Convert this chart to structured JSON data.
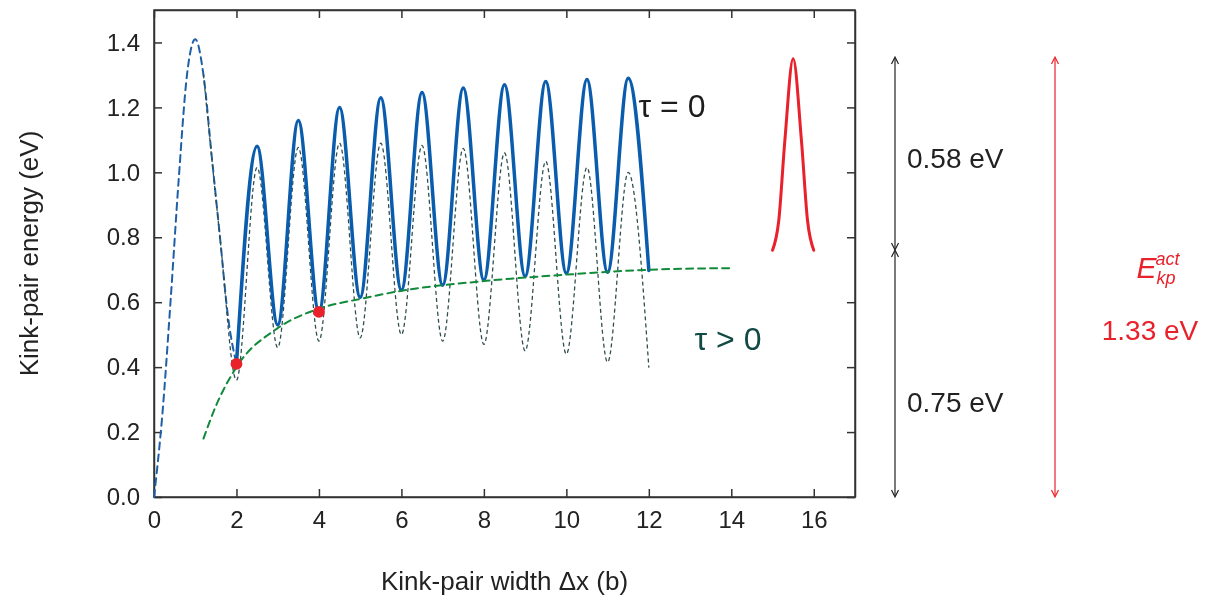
{
  "chart_data": {
    "type": "line",
    "xlabel": "Kink-pair width Δx (b)",
    "ylabel": "Kink-pair energy (eV)",
    "xlim": [
      0,
      17
    ],
    "ylim": [
      0,
      1.5
    ],
    "xticks": [
      0,
      2,
      4,
      6,
      8,
      10,
      12,
      14,
      16
    ],
    "yticks": [
      {
        "value": 0,
        "label": "0.0"
      },
      0.2,
      0.4,
      0.6,
      0.8,
      {
        "value": 1,
        "label": "1.0"
      },
      1.2,
      1.4
    ],
    "grid": false,
    "series": [
      {
        "color": "#1f5fa8",
        "line_style": "dashed",
        "x": [
          0,
          0.2,
          0.4,
          0.6,
          0.8,
          1,
          1.2,
          1.4,
          1.6,
          1.8,
          2
        ],
        "values": [
          0,
          0.25,
          0.6,
          0.98,
          1.3,
          1.41,
          1.3,
          1.05,
          0.8,
          0.55,
          0.41
        ]
      },
      {
        "color": "#2f4f4f",
        "line_style": "dotted",
        "x": [
          1.2,
          1.6,
          2,
          2.5,
          3,
          3.5,
          4,
          4.5,
          5,
          5.5,
          6,
          6.5,
          7,
          7.5,
          8,
          8.5,
          9,
          9.5,
          10,
          10.5,
          11,
          11.5,
          12
        ],
        "values": [
          1.3,
          0.8,
          0.36,
          1.015,
          0.46,
          1.077,
          0.48,
          1.09,
          0.49,
          1.09,
          0.5,
          1.083,
          0.48,
          1.074,
          0.47,
          1.06,
          0.45,
          1.034,
          0.44,
          1.015,
          0.415,
          1.0,
          0.4
        ]
      },
      {
        "color": "#0a5cad",
        "line_style": "solid",
        "x": [
          2,
          2.5,
          3,
          3.5,
          4,
          4.5,
          5,
          5.5,
          6,
          6.5,
          7,
          7.5,
          8,
          8.5,
          9,
          9.5,
          10,
          10.5,
          11,
          11.5,
          12
        ],
        "values": [
          0.41,
          1.08,
          0.53,
          1.16,
          0.57,
          1.2,
          0.615,
          1.23,
          0.637,
          1.246,
          0.652,
          1.26,
          0.668,
          1.27,
          0.68,
          1.28,
          0.689,
          1.286,
          0.692,
          1.29,
          0.698
        ]
      },
      {
        "color": "#118a3a",
        "line_style": "dashed",
        "x": [
          1.2,
          1.5,
          2,
          3,
          4,
          5,
          6,
          8,
          10,
          12,
          14
        ],
        "values": [
          0.18,
          0.28,
          0.4,
          0.52,
          0.58,
          0.61,
          0.635,
          0.665,
          0.685,
          0.7,
          0.705
        ]
      },
      {
        "type": "scatter",
        "marker": "circle",
        "color": "#e8212b",
        "x": [
          2,
          4
        ],
        "values": [
          0.41,
          0.57
        ]
      },
      {
        "color": "#e8212b",
        "line_style": "solid",
        "x": [
          15,
          15.15,
          15.3,
          15.5,
          15.7,
          15.85,
          16
        ],
        "values": [
          0.76,
          0.85,
          1.1,
          1.35,
          1.1,
          0.85,
          0.76
        ]
      }
    ],
    "annotations": [
      "τ = 0",
      "τ > 0",
      "0.58 eV",
      "0.75 eV",
      "E$_{kp}$$^{act}$",
      "1.33 eV"
    ]
  }
}
